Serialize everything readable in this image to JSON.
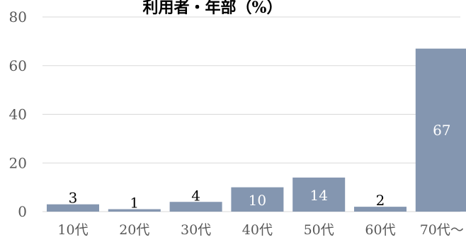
{
  "chart_data": {
    "type": "bar",
    "title": "利用者・年部（%）",
    "categories": [
      "10代",
      "20代",
      "30代",
      "40代",
      "50代",
      "60代",
      "70代〜"
    ],
    "values": [
      3,
      1,
      4,
      10,
      14,
      2,
      67
    ],
    "ylim": [
      0,
      80
    ],
    "yticks": [
      0,
      20,
      40,
      60,
      80
    ],
    "xlabel": "",
    "ylabel": "",
    "grid": true,
    "legend": "none",
    "data_labels": true
  },
  "colors": {
    "bar": "#8496b0",
    "grid": "#d9d9d9",
    "axis_text": "#595959",
    "label_dark": "#000000",
    "label_light": "#ffffff",
    "title": "#000000"
  }
}
